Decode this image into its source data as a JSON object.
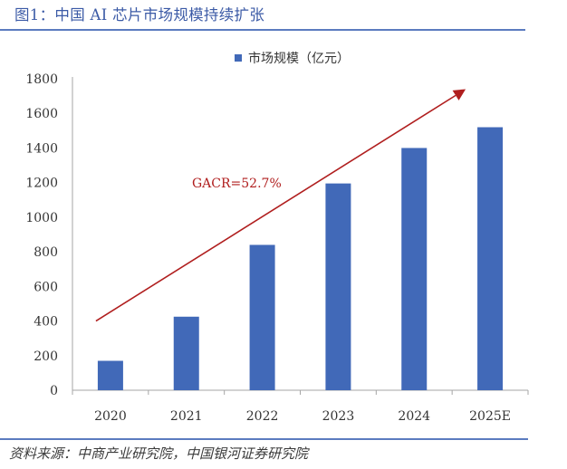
{
  "figure": {
    "title": "图1：中国 AI 芯片市场规模持续扩张",
    "source": "资料来源：中商产业研究院，中国银河证券研究院"
  },
  "chart_data": {
    "type": "bar",
    "categories": [
      "2020",
      "2021",
      "2022",
      "2023",
      "2024",
      "2025E"
    ],
    "series": [
      {
        "name": "市场规模（亿元）",
        "values": [
          170,
          425,
          840,
          1195,
          1400,
          1520
        ]
      }
    ],
    "ylim": [
      0,
      1800
    ],
    "y_ticks": [
      0,
      200,
      400,
      600,
      800,
      1000,
      1200,
      1400,
      1600,
      1800
    ],
    "legend_position": "top-center",
    "grid": false,
    "annotation": {
      "text": "GACR=52.7%",
      "color": "#b01e1e"
    },
    "trend_arrow": {
      "from": [
        0,
        400
      ],
      "to": [
        5,
        1740
      ],
      "color": "#b01e1e"
    },
    "bar_color": "#4169b8"
  }
}
